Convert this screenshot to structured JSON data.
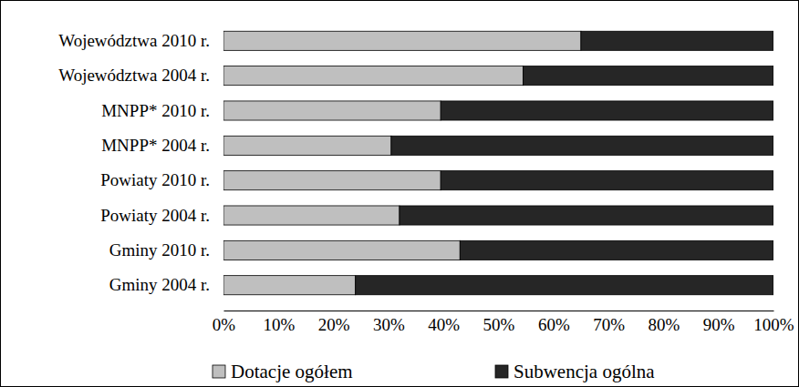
{
  "chart_data": {
    "type": "bar",
    "orientation": "horizontal",
    "stacked": true,
    "legend": "bottom",
    "categories": [
      "Województwa 2010 r.",
      "Województwa 2004 r.",
      "MNPP* 2010 r.",
      "MNPP* 2004 r.",
      "Powiaty 2010 r.",
      "Powiaty 2004 r.",
      "Gminy 2010 r.",
      "Gminy 2004 r."
    ],
    "series": [
      {
        "name": "Dotacje ogółem",
        "color": "#bfbfbf",
        "values": [
          65,
          54.5,
          39.5,
          30.5,
          39.5,
          32,
          43,
          24
        ]
      },
      {
        "name": "Subwencja ogólna",
        "color": "#262626",
        "values": [
          35,
          45.5,
          60.5,
          69.5,
          60.5,
          68,
          57,
          76
        ]
      }
    ],
    "xlim": [
      0,
      100
    ],
    "xticks": [
      {
        "value": 0,
        "label": "0%"
      },
      {
        "value": 10,
        "label": "10%"
      },
      {
        "value": 20,
        "label": "20%"
      },
      {
        "value": 30,
        "label": "30%"
      },
      {
        "value": 40,
        "label": "40%"
      },
      {
        "value": 50,
        "label": "50%"
      },
      {
        "value": 60,
        "label": "60%"
      },
      {
        "value": 70,
        "label": "70%"
      },
      {
        "value": 80,
        "label": "80%"
      },
      {
        "value": 90,
        "label": "90%"
      },
      {
        "value": 100,
        "label": "100%"
      }
    ],
    "grid": false
  }
}
